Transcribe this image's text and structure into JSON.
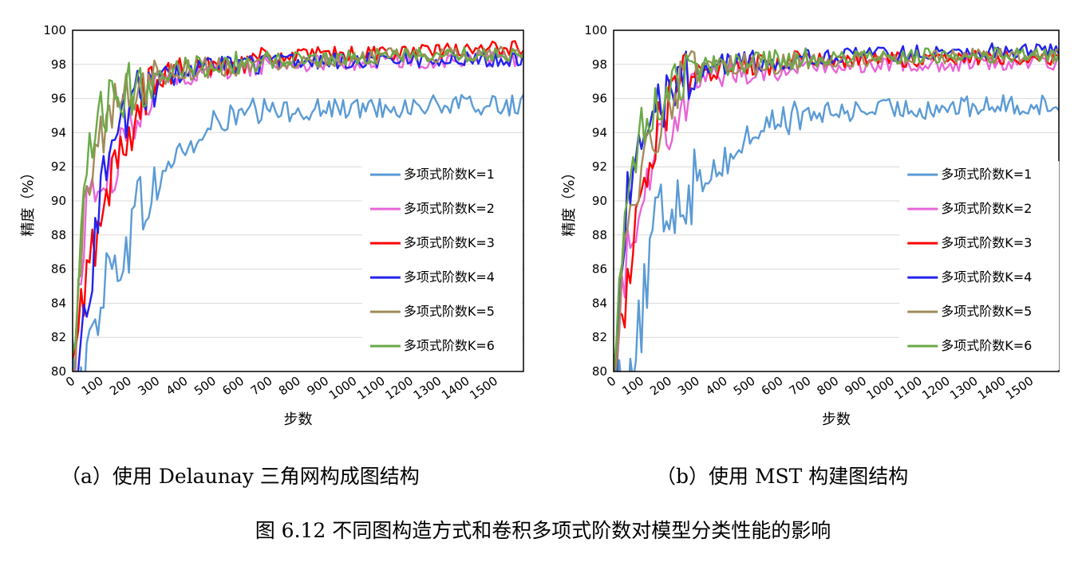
{
  "figure_caption": "图 6.12 不同图构造方式和卷积多项式阶数对模型分类性能的影响",
  "colors": {
    "K1": "#5b9bd5",
    "K2": "#e865d8",
    "K3": "#ff0000",
    "K4": "#2222ee",
    "K5": "#a08c5a",
    "K6": "#6aaa46",
    "grid": "#d9d9d9"
  },
  "chart_data": [
    {
      "type": "line",
      "caption": "（a）使用 Delaunay 三角网构成图结构",
      "xlabel": "步数",
      "ylabel": "精度（%）",
      "xlim": [
        0,
        1600
      ],
      "ylim": [
        80,
        100
      ],
      "xticks": [
        "0",
        "100",
        "200",
        "300",
        "400",
        "500",
        "600",
        "700",
        "800",
        "900",
        "1000",
        "1100",
        "1200",
        "1300",
        "1400",
        "1500"
      ],
      "yticks": [
        "80",
        "82",
        "84",
        "86",
        "88",
        "90",
        "92",
        "94",
        "96",
        "98",
        "100"
      ],
      "grid": "horizontal",
      "legend_position": "right",
      "series": [
        {
          "name": "多项式阶数K=1",
          "x": [
            0,
            50,
            100,
            150,
            200,
            250,
            300,
            350,
            400,
            450,
            500,
            600,
            700,
            800,
            900,
            1000,
            1100,
            1200,
            1300,
            1400,
            1500,
            1600
          ],
          "y": [
            80,
            80,
            85,
            86,
            88,
            90,
            90.5,
            92.5,
            93,
            93.5,
            94.5,
            95,
            95.2,
            95.3,
            95.4,
            95.4,
            95.5,
            95.5,
            95.6,
            95.6,
            95.6,
            95.6
          ]
        },
        {
          "name": "多项式阶数K=2",
          "x": [
            0,
            50,
            100,
            150,
            200,
            250,
            300,
            350,
            400,
            500,
            600,
            700,
            800,
            900,
            1000,
            1100,
            1200,
            1300,
            1400,
            1500,
            1600
          ],
          "y": [
            80,
            90,
            91,
            91.5,
            94.5,
            96,
            97,
            97.3,
            97.5,
            97.6,
            97.8,
            98,
            98,
            98.1,
            98.1,
            98.2,
            98.2,
            98.2,
            98.3,
            98.3,
            98.3
          ]
        },
        {
          "name": "多项式阶数K=3",
          "x": [
            0,
            50,
            100,
            150,
            200,
            250,
            300,
            350,
            400,
            500,
            600,
            700,
            800,
            900,
            1000,
            1100,
            1200,
            1300,
            1400,
            1500,
            1600
          ],
          "y": [
            80,
            86,
            88.5,
            92,
            94,
            96,
            97,
            97.5,
            97.8,
            98,
            98.2,
            98.4,
            98.5,
            98.6,
            98.6,
            98.7,
            98.7,
            98.8,
            98.8,
            98.9,
            99
          ]
        },
        {
          "name": "多项式阶数K=4",
          "x": [
            0,
            50,
            100,
            150,
            200,
            250,
            300,
            350,
            400,
            500,
            600,
            700,
            800,
            900,
            1000,
            1100,
            1200,
            1300,
            1400,
            1500,
            1600
          ],
          "y": [
            80,
            83,
            91,
            94,
            95.5,
            96.5,
            97,
            97.4,
            97.6,
            97.8,
            98,
            98.1,
            98.2,
            98.2,
            98.2,
            98.3,
            98.3,
            98.3,
            98.3,
            98.3,
            98.3
          ]
        },
        {
          "name": "多项式阶数K=5",
          "x": [
            0,
            50,
            100,
            150,
            200,
            250,
            300,
            350,
            400,
            500,
            600,
            700,
            800,
            900,
            1000,
            1100,
            1200,
            1300,
            1400,
            1500,
            1600
          ],
          "y": [
            80,
            91,
            94,
            95.5,
            96.5,
            97,
            97.3,
            97.5,
            97.7,
            97.9,
            98,
            98.1,
            98.2,
            98.3,
            98.4,
            98.5,
            98.5,
            98.5,
            98.6,
            98.6,
            98.6
          ]
        },
        {
          "name": "多项式阶数K=6",
          "x": [
            0,
            50,
            100,
            150,
            200,
            250,
            300,
            350,
            400,
            500,
            600,
            700,
            800,
            900,
            1000,
            1100,
            1200,
            1300,
            1400,
            1500,
            1600
          ],
          "y": [
            80,
            92,
            95,
            96,
            96.5,
            97,
            97.4,
            97.7,
            97.9,
            98,
            98.1,
            98.2,
            98.3,
            98.4,
            98.4,
            98.5,
            98.5,
            98.6,
            98.6,
            98.6,
            98.6
          ]
        }
      ]
    },
    {
      "type": "line",
      "caption": "（b）使用 MST 构建图结构",
      "xlabel": "步数",
      "ylabel": "精度（%）",
      "xlim": [
        0,
        1600
      ],
      "ylim": [
        80,
        100
      ],
      "xticks": [
        "0",
        "100",
        "200",
        "300",
        "400",
        "500",
        "600",
        "700",
        "800",
        "900",
        "1000",
        "1100",
        "1200",
        "1300",
        "1400",
        "1500"
      ],
      "yticks": [
        "80",
        "82",
        "84",
        "86",
        "88",
        "90",
        "92",
        "94",
        "96",
        "98",
        "100"
      ],
      "grid": "horizontal",
      "legend_position": "right",
      "series": [
        {
          "name": "多项式阶数K=1",
          "x": [
            0,
            50,
            100,
            150,
            200,
            250,
            300,
            350,
            400,
            450,
            500,
            600,
            700,
            800,
            900,
            1000,
            1100,
            1200,
            1300,
            1400,
            1500,
            1600
          ],
          "y": [
            80,
            80,
            83,
            88.5,
            89.5,
            90.5,
            91,
            91.8,
            92.3,
            93,
            94,
            94.8,
            95,
            95.2,
            95.3,
            95.4,
            95.4,
            95.5,
            95.5,
            95.6,
            95.6,
            95.6
          ]
        },
        {
          "name": "多项式阶数K=2",
          "x": [
            0,
            50,
            100,
            150,
            200,
            250,
            300,
            350,
            400,
            500,
            600,
            700,
            800,
            900,
            1000,
            1100,
            1200,
            1300,
            1400,
            1500,
            1600
          ],
          "y": [
            80,
            87,
            90.5,
            93,
            94.5,
            96,
            97,
            97.2,
            97.4,
            97.6,
            97.7,
            97.8,
            97.9,
            97.9,
            98,
            98,
            98,
            98.1,
            98.1,
            98.1,
            98.1
          ]
        },
        {
          "name": "多项式阶数K=3",
          "x": [
            0,
            50,
            100,
            150,
            200,
            250,
            300,
            350,
            400,
            500,
            600,
            700,
            800,
            900,
            1000,
            1100,
            1200,
            1300,
            1400,
            1500,
            1600
          ],
          "y": [
            80,
            85,
            91,
            94,
            96,
            97,
            97.5,
            97.7,
            97.9,
            98,
            98.1,
            98.2,
            98.2,
            98.3,
            98.3,
            98.3,
            98.3,
            98.4,
            98.4,
            98.4,
            98.4
          ]
        },
        {
          "name": "多项式阶数K=4",
          "x": [
            0,
            50,
            100,
            150,
            200,
            250,
            300,
            350,
            400,
            500,
            600,
            700,
            800,
            900,
            1000,
            1100,
            1200,
            1300,
            1400,
            1500,
            1600
          ],
          "y": [
            80,
            91,
            93,
            95,
            96.5,
            97.2,
            97.6,
            97.9,
            98.1,
            98.2,
            98.3,
            98.4,
            98.5,
            98.6,
            98.6,
            98.7,
            98.7,
            98.8,
            98.8,
            98.8,
            98.8
          ]
        },
        {
          "name": "多项式阶数K=5",
          "x": [
            0,
            50,
            100,
            150,
            200,
            250,
            300,
            350,
            400,
            500,
            600,
            700,
            800,
            900,
            1000,
            1100,
            1200,
            1300,
            1400,
            1500,
            1600
          ],
          "y": [
            80,
            88,
            91.5,
            94,
            96,
            97,
            97.4,
            97.6,
            97.8,
            98,
            98.1,
            98.2,
            98.3,
            98.3,
            98.4,
            98.4,
            98.4,
            98.5,
            98.5,
            98.5,
            98.5
          ]
        },
        {
          "name": "多项式阶数K=6",
          "x": [
            0,
            50,
            100,
            150,
            200,
            250,
            300,
            350,
            400,
            500,
            600,
            700,
            800,
            900,
            1000,
            1100,
            1200,
            1300,
            1400,
            1500,
            1600
          ],
          "y": [
            80,
            90,
            94.5,
            96,
            96.8,
            97.3,
            97.6,
            97.8,
            98,
            98.1,
            98.2,
            98.3,
            98.3,
            98.4,
            98.4,
            98.5,
            98.5,
            98.5,
            98.6,
            98.6,
            98.6
          ]
        }
      ]
    }
  ]
}
